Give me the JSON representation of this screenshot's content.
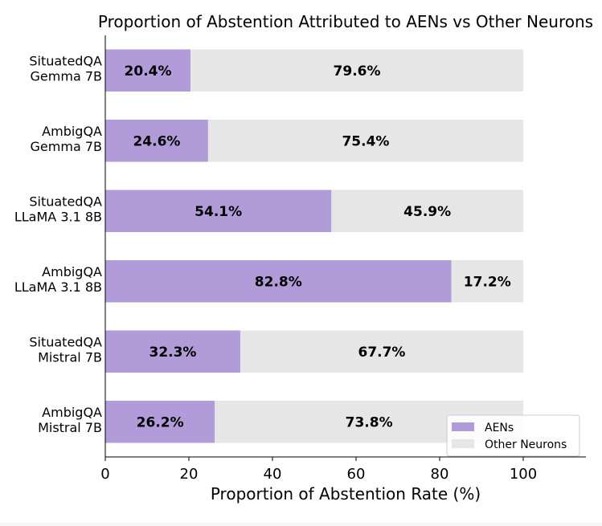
{
  "chart_data": {
    "type": "bar",
    "orientation": "horizontal",
    "stacked": true,
    "title": "Proportion of Abstention Attributed to AENs vs Other Neurons",
    "xlabel": "Proportion of Abstention Rate (%)",
    "ylabel": "",
    "xlim": [
      0,
      115
    ],
    "xticks": [
      "0",
      "20",
      "40",
      "60",
      "80",
      "100"
    ],
    "categories": [
      [
        "SituatedQA",
        "Gemma 7B"
      ],
      [
        "AmbigQA",
        "Gemma 7B"
      ],
      [
        "SituatedQA",
        "LLaMA 3.1 8B"
      ],
      [
        "AmbigQA",
        "LLaMA 3.1 8B"
      ],
      [
        "SituatedQA",
        "Mistral 7B"
      ],
      [
        "AmbigQA",
        "Mistral 7B"
      ]
    ],
    "series": [
      {
        "name": "AENs",
        "color": "#b19cd9",
        "values": [
          20.4,
          24.6,
          54.1,
          82.8,
          32.3,
          26.2
        ],
        "labels": [
          "20.4%",
          "24.6%",
          "54.1%",
          "82.8%",
          "32.3%",
          "26.2%"
        ]
      },
      {
        "name": "Other Neurons",
        "color": "#e6e6e6",
        "values": [
          79.6,
          75.4,
          45.9,
          17.2,
          67.7,
          73.8
        ],
        "labels": [
          "79.6%",
          "75.4%",
          "45.9%",
          "17.2%",
          "67.7%",
          "73.8%"
        ]
      }
    ],
    "legend": {
      "position": "lower-right"
    },
    "grid": false
  }
}
